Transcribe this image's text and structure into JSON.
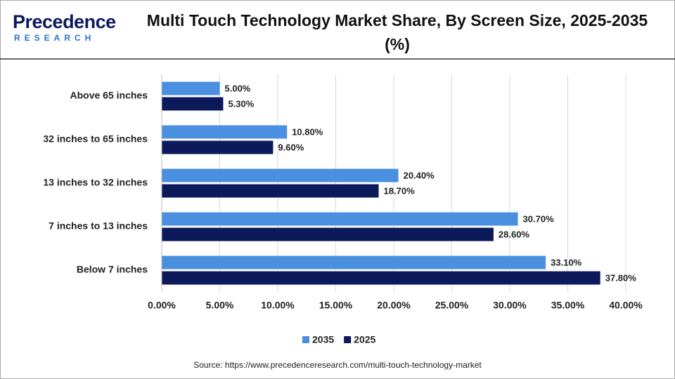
{
  "logo": {
    "name": "Precedence",
    "sub": "RESEARCH"
  },
  "chart_data": {
    "type": "hbar",
    "title": "Multi Touch Technology Market Share, By Screen Size, 2025-2035 (%)",
    "categories": [
      "Above 65 inches",
      "32 inches to 65 inches",
      "13 inches to 32 inches",
      "7 inches to 13 inches",
      "Below 7 inches"
    ],
    "series": [
      {
        "name": "2035",
        "color": "#4a8fe0",
        "values": [
          5.0,
          10.8,
          20.4,
          30.7,
          33.1
        ],
        "value_labels": [
          "5.00%",
          "10.80%",
          "20.40%",
          "30.70%",
          "33.10%"
        ]
      },
      {
        "name": "2025",
        "color": "#0c1a5c",
        "values": [
          5.3,
          9.6,
          18.7,
          28.6,
          37.8
        ],
        "value_labels": [
          "5.30%",
          "9.60%",
          "18.70%",
          "28.60%",
          "37.80%"
        ]
      }
    ],
    "xlim": [
      0,
      40
    ],
    "xticks": [
      {
        "value": 0,
        "label": "0.00%"
      },
      {
        "value": 5,
        "label": "5.00%"
      },
      {
        "value": 10,
        "label": "10.00%"
      },
      {
        "value": 15,
        "label": "15.00%"
      },
      {
        "value": 20,
        "label": "20.00%"
      },
      {
        "value": 25,
        "label": "25.00%"
      },
      {
        "value": 30,
        "label": "30.00%"
      },
      {
        "value": 35,
        "label": "35.00%"
      },
      {
        "value": 40,
        "label": "40.00%"
      }
    ],
    "grid": true,
    "legend": "bottom",
    "source": "Source: https://www.precedenceresearch.com/multi-touch-technology-market"
  }
}
